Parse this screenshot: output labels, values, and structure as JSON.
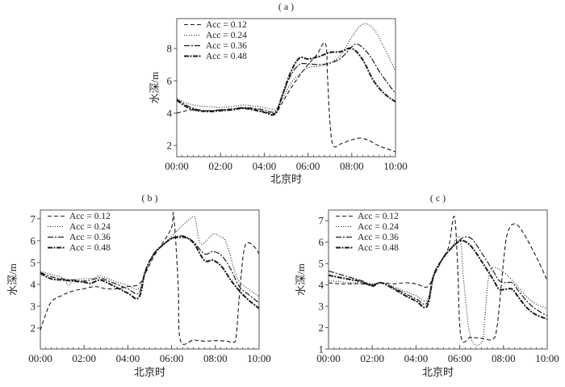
{
  "chart_data": [
    {
      "type": "line",
      "panel": "(a)",
      "panel_label": "( a )",
      "xlabel": "北京时",
      "ylabel": "水深/m",
      "xlim": [
        0,
        10
      ],
      "ylim": [
        1.3,
        9.85
      ],
      "x_ticks": [
        0,
        2,
        4,
        6,
        8,
        10
      ],
      "x_tick_labels": [
        "00:00",
        "02:00",
        "04:00",
        "06:00",
        "08:00",
        "10:00"
      ],
      "y_ticks": [
        2,
        4,
        6,
        8
      ],
      "y_tick_labels": [
        "2",
        "4",
        "6",
        "8"
      ],
      "legend": "top-left",
      "grid": false,
      "series": [
        {
          "name": "Acc = 0.12",
          "style": "dashed",
          "x": [
            0,
            0.3,
            0.6,
            1,
            1.5,
            2,
            2.5,
            3,
            3.5,
            4,
            4.5,
            4.8,
            5.2,
            5.6,
            6,
            6.4,
            6.8,
            6.9,
            7.0,
            7.15,
            7.5,
            8,
            8.4,
            8.8,
            9.2,
            9.6,
            10
          ],
          "y": [
            4.0,
            4.1,
            4.2,
            4.15,
            4.15,
            4.2,
            4.25,
            4.3,
            4.25,
            4.1,
            4.0,
            4.6,
            5.5,
            6.3,
            7.0,
            7.6,
            8.3,
            6.0,
            3.5,
            2.0,
            2.1,
            2.35,
            2.45,
            2.3,
            2.0,
            1.8,
            1.6
          ]
        },
        {
          "name": "Acc = 0.24",
          "style": "dotted",
          "x": [
            0,
            0.5,
            1,
            1.5,
            2,
            2.5,
            3,
            3.5,
            4,
            4.5,
            4.8,
            5.2,
            5.6,
            6,
            6.5,
            7,
            7.5,
            8,
            8.5,
            9,
            9.5,
            10
          ],
          "y": [
            4.9,
            4.6,
            4.45,
            4.4,
            4.35,
            4.4,
            4.5,
            4.45,
            4.35,
            4.25,
            4.8,
            5.8,
            6.4,
            6.8,
            6.9,
            7.1,
            7.6,
            8.7,
            9.5,
            9.2,
            8.0,
            6.6
          ]
        },
        {
          "name": "Acc = 0.36",
          "style": "dashdot",
          "x": [
            0,
            0.5,
            1,
            1.5,
            2,
            2.5,
            3,
            3.5,
            4,
            4.5,
            4.8,
            5.2,
            5.6,
            6,
            6.5,
            7,
            7.5,
            8,
            8.3,
            8.8,
            9.3,
            10
          ],
          "y": [
            4.85,
            4.45,
            4.2,
            4.15,
            4.2,
            4.25,
            4.35,
            4.3,
            4.2,
            4.1,
            5.0,
            6.3,
            7.0,
            7.05,
            7.0,
            7.1,
            7.4,
            8.1,
            8.25,
            7.6,
            6.5,
            5.2
          ]
        },
        {
          "name": "Acc = 0.48",
          "style": "thick-dashdot",
          "x": [
            0,
            0.5,
            1,
            1.5,
            2,
            2.5,
            3,
            3.5,
            4,
            4.5,
            4.8,
            5.2,
            5.6,
            6,
            6.5,
            7,
            7.5,
            8,
            8.5,
            9,
            9.5,
            10
          ],
          "y": [
            4.8,
            4.35,
            4.15,
            4.1,
            4.15,
            4.2,
            4.3,
            4.2,
            4.05,
            3.95,
            5.0,
            6.5,
            7.4,
            7.35,
            7.5,
            7.75,
            7.8,
            8.0,
            7.3,
            6.0,
            5.2,
            4.7
          ]
        }
      ]
    },
    {
      "type": "line",
      "panel": "(b)",
      "panel_label": "( b )",
      "xlabel": "北京时",
      "ylabel": "水深/m",
      "xlim": [
        0,
        10
      ],
      "ylim": [
        1.04,
        7.4
      ],
      "x_ticks": [
        0,
        2,
        4,
        6,
        8,
        10
      ],
      "x_tick_labels": [
        "00:00",
        "02:00",
        "04:00",
        "06:00",
        "08:00",
        "10:00"
      ],
      "y_ticks": [
        2,
        3,
        4,
        5,
        6,
        7
      ],
      "y_tick_labels": [
        "2",
        "3",
        "4",
        "5",
        "6",
        "7"
      ],
      "legend": "top-left",
      "grid": false,
      "series": [
        {
          "name": "Acc = 0.12",
          "style": "dashed",
          "x": [
            0,
            0.2,
            0.5,
            1,
            1.5,
            2,
            2.5,
            3,
            3.5,
            4,
            4.5,
            4.8,
            5.2,
            5.6,
            6.0,
            6.1,
            6.3,
            6.4,
            7,
            7.5,
            8,
            8.5,
            8.8,
            8.95,
            9.1,
            9.3,
            9.5,
            9.8,
            10
          ],
          "y": [
            1.9,
            2.5,
            3.2,
            3.5,
            3.7,
            3.8,
            3.9,
            3.8,
            3.8,
            3.9,
            4.0,
            4.5,
            5.3,
            5.9,
            6.6,
            7.15,
            4.0,
            1.45,
            1.45,
            1.4,
            1.42,
            1.4,
            1.35,
            1.6,
            3.5,
            5.5,
            5.9,
            5.7,
            5.4
          ]
        },
        {
          "name": "Acc = 0.24",
          "style": "dotted",
          "x": [
            0,
            0.5,
            1,
            1.3,
            1.5,
            2,
            2.5,
            2.7,
            3,
            3.5,
            4,
            4.5,
            4.8,
            5.2,
            5.6,
            6,
            6.5,
            7,
            7.1,
            7.3,
            7.6,
            7.9,
            8.2,
            8.5,
            9,
            9.5,
            10
          ],
          "y": [
            4.6,
            4.45,
            4.3,
            3.95,
            4.2,
            4.25,
            4.3,
            4.4,
            4.3,
            4.1,
            3.95,
            3.8,
            4.6,
            5.4,
            5.8,
            6.2,
            6.7,
            7.1,
            6.9,
            5.9,
            6.0,
            6.3,
            6.2,
            5.9,
            4.3,
            3.8,
            3.45
          ]
        },
        {
          "name": "Acc = 0.36",
          "style": "dashdot",
          "x": [
            0,
            0.5,
            1,
            1.5,
            2,
            2.5,
            2.7,
            3,
            3.5,
            4,
            4.5,
            4.8,
            5.2,
            5.6,
            6,
            6.3,
            6.6,
            7,
            7.5,
            7.9,
            8.3,
            8.7,
            9.1,
            9.5,
            10
          ],
          "y": [
            4.55,
            4.35,
            4.25,
            4.2,
            4.15,
            4.25,
            4.3,
            4.2,
            4.0,
            3.8,
            3.6,
            4.6,
            5.4,
            5.8,
            6.1,
            6.2,
            6.2,
            5.95,
            5.4,
            5.5,
            5.3,
            4.7,
            3.9,
            3.55,
            3.15
          ]
        },
        {
          "name": "Acc = 0.48",
          "style": "thick-dashdot",
          "x": [
            0,
            0.5,
            1,
            1.5,
            2,
            2.3,
            2.7,
            3,
            3.5,
            4,
            4.5,
            4.8,
            5.2,
            5.6,
            6,
            6.3,
            6.6,
            7,
            7.5,
            7.9,
            8.3,
            8.7,
            9.1,
            9.5,
            10
          ],
          "y": [
            4.5,
            4.25,
            4.2,
            4.15,
            4.1,
            4.05,
            4.2,
            4.1,
            3.85,
            3.6,
            3.4,
            4.6,
            5.4,
            5.8,
            6.1,
            6.15,
            6.15,
            5.9,
            5.1,
            5.1,
            4.8,
            4.2,
            3.7,
            3.3,
            2.9
          ]
        }
      ]
    },
    {
      "type": "line",
      "panel": "(c)",
      "panel_label": "( c )",
      "xlabel": "北京时",
      "ylabel": "水深/m",
      "xlim": [
        0,
        10
      ],
      "ylim": [
        1,
        7.5
      ],
      "x_ticks": [
        0,
        2,
        4,
        6,
        8,
        10
      ],
      "x_tick_labels": [
        "00:00",
        "02:00",
        "04:00",
        "06:00",
        "08:00",
        "10:00"
      ],
      "y_ticks": [
        1,
        2,
        3,
        4,
        5,
        6,
        7
      ],
      "y_tick_labels": [
        "1",
        "2",
        "3",
        "4",
        "5",
        "6",
        "7"
      ],
      "legend": "top-left",
      "grid": false,
      "series": [
        {
          "name": "Acc = 0.12",
          "style": "dashed",
          "x": [
            0,
            0.5,
            1,
            1.5,
            2,
            2.4,
            3,
            3.5,
            4,
            4.5,
            4.8,
            5.2,
            5.5,
            5.75,
            5.9,
            6.05,
            6.5,
            7,
            7.5,
            7.7,
            7.9,
            8.1,
            8.3,
            8.55,
            8.8,
            9.2,
            9.6,
            10
          ],
          "y": [
            4.1,
            4.05,
            4.05,
            4.05,
            4.0,
            4.1,
            4.05,
            4.1,
            4.05,
            3.9,
            4.4,
            5.2,
            5.8,
            7.2,
            5.0,
            1.6,
            1.55,
            1.5,
            1.45,
            2.0,
            4.0,
            6.0,
            6.7,
            6.85,
            6.6,
            5.9,
            5.1,
            4.2
          ]
        },
        {
          "name": "Acc = 0.24",
          "style": "dotted",
          "x": [
            0,
            0.5,
            1,
            1.5,
            2,
            2.4,
            3,
            3.5,
            4,
            4.5,
            4.8,
            5.2,
            5.6,
            6,
            6.2,
            6.5,
            7,
            7.15,
            7.3,
            7.5,
            8,
            8.5,
            9,
            9.5,
            10
          ],
          "y": [
            4.2,
            4.15,
            4.1,
            4.1,
            4.05,
            4.1,
            3.9,
            3.7,
            3.5,
            3.3,
            4.5,
            5.2,
            5.7,
            6.2,
            4.0,
            1.55,
            1.3,
            2.5,
            4.2,
            4.8,
            4.6,
            4.1,
            3.5,
            3.1,
            2.9
          ]
        },
        {
          "name": "Acc = 0.36",
          "style": "dashdot",
          "x": [
            0,
            0.5,
            1,
            1.5,
            2,
            2.4,
            3,
            3.5,
            4,
            4.5,
            4.8,
            5.2,
            5.6,
            6,
            6.3,
            6.6,
            7,
            7.5,
            7.8,
            8.1,
            8.4,
            8.7,
            9.1,
            9.5,
            10
          ],
          "y": [
            4.65,
            4.5,
            4.35,
            4.2,
            4.0,
            4.1,
            3.85,
            3.6,
            3.35,
            3.15,
            4.4,
            5.2,
            5.7,
            6.1,
            6.25,
            6.1,
            5.5,
            4.7,
            4.2,
            4.1,
            4.1,
            3.7,
            3.2,
            2.85,
            2.55
          ]
        },
        {
          "name": "Acc = 0.48",
          "style": "thick-dashdot",
          "x": [
            0,
            0.5,
            1,
            1.5,
            2,
            2.4,
            3,
            3.5,
            4,
            4.5,
            4.8,
            5.2,
            5.6,
            6,
            6.3,
            6.6,
            7,
            7.5,
            7.8,
            8.1,
            8.4,
            8.7,
            9.1,
            9.5,
            10
          ],
          "y": [
            4.45,
            4.35,
            4.25,
            4.15,
            3.95,
            4.1,
            3.8,
            3.5,
            3.25,
            3.0,
            4.4,
            5.2,
            5.7,
            6.05,
            6.0,
            5.7,
            5.1,
            4.3,
            3.8,
            3.8,
            3.8,
            3.4,
            2.9,
            2.6,
            2.4
          ]
        }
      ]
    }
  ]
}
